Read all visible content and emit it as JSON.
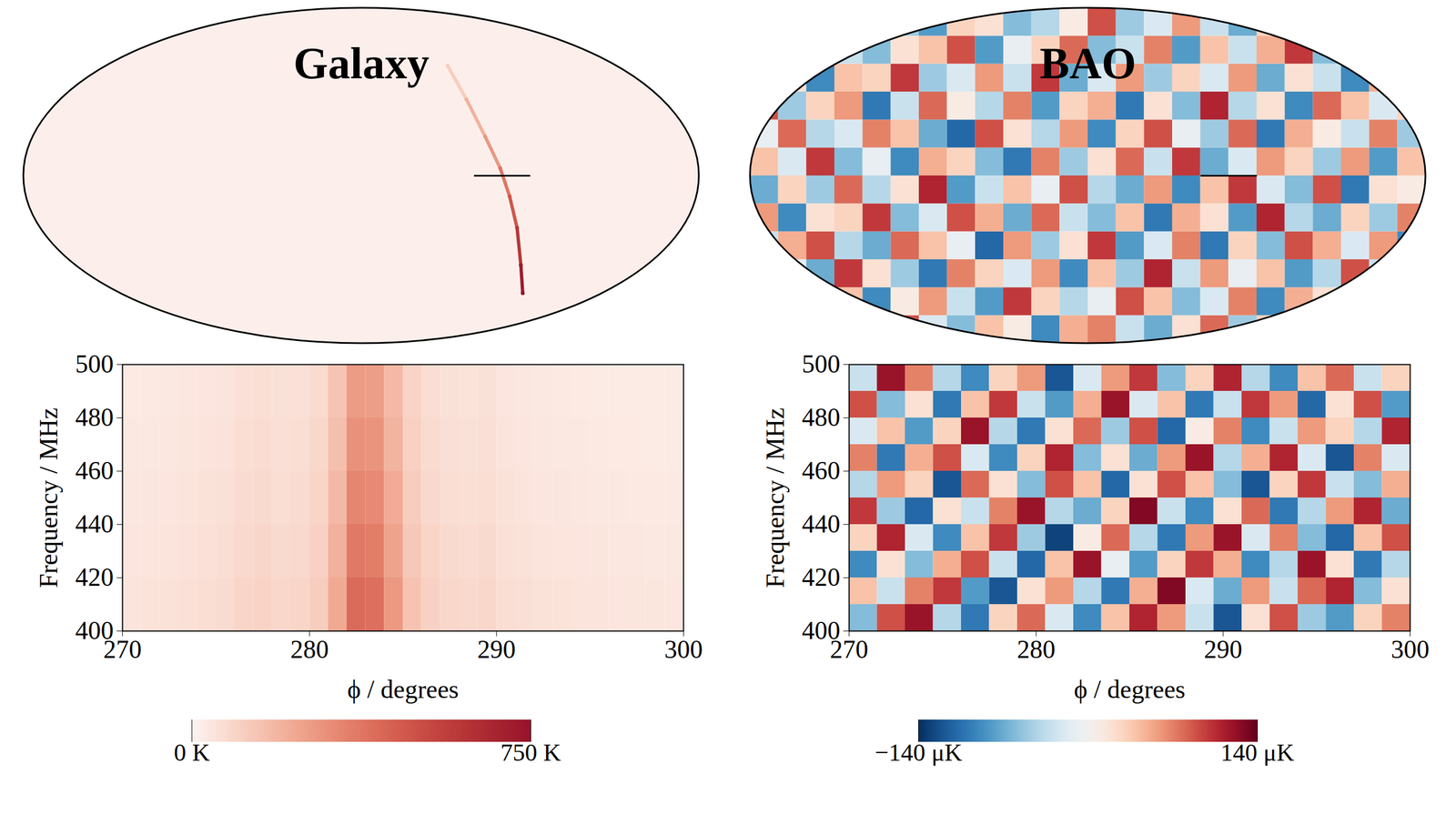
{
  "chart_data": [
    {
      "type": "sky_map",
      "title": "Galaxy",
      "xlim": [
        -180,
        180
      ],
      "ylim": [
        -90,
        90
      ],
      "tick_labels": false,
      "background": 15,
      "ridge": {
        "x": [
          46,
          56,
          66,
          74,
          79,
          83,
          85,
          86
        ],
        "y": [
          59,
          41,
          21,
          4,
          -11,
          -28,
          -48,
          -63
        ],
        "values": [
          120,
          200,
          280,
          380,
          480,
          600,
          720,
          750
        ]
      },
      "marker": {
        "x": [
          60,
          90
        ],
        "y": 0
      }
    },
    {
      "type": "sky_map",
      "title": "BAO",
      "xlim": [
        -180,
        180
      ],
      "ylim": [
        -90,
        90
      ],
      "tick_labels": false,
      "cells": {
        "xbins": [
          -180,
          -165,
          -150,
          -135,
          -120,
          -105,
          -90,
          -75,
          -60,
          -45,
          -30,
          -15,
          0,
          15,
          30,
          45,
          60,
          75,
          90,
          105,
          120,
          135,
          150,
          165,
          180
        ],
        "ybins": [
          -90,
          -75,
          -60,
          -45,
          -30,
          -15,
          0,
          15,
          30,
          45,
          60,
          75,
          90
        ],
        "values": [
          [
            20,
            -40,
            60,
            -80,
            30,
            90,
            -20,
            -60,
            40,
            10,
            -90,
            50,
            70,
            -30,
            -70,
            20,
            80,
            -50,
            30,
            -10,
            60,
            -40,
            10,
            -20
          ],
          [
            -50,
            70,
            -20,
            40,
            -90,
            10,
            60,
            -30,
            -80,
            100,
            30,
            -40,
            -10,
            90,
            40,
            -60,
            -20,
            70,
            -90,
            50,
            20,
            -70,
            80,
            30
          ],
          [
            80,
            -10,
            -70,
            100,
            20,
            -50,
            -100,
            70,
            30,
            -20,
            60,
            -90,
            40,
            -50,
            110,
            -30,
            60,
            -10,
            40,
            -80,
            -40,
            90,
            -30,
            -60
          ],
          [
            -30,
            50,
            90,
            -40,
            -70,
            80,
            40,
            -10,
            -110,
            60,
            -50,
            20,
            100,
            -80,
            -20,
            70,
            -100,
            30,
            -60,
            90,
            50,
            -20,
            60,
            -90
          ],
          [
            60,
            -90,
            20,
            30,
            100,
            -60,
            -20,
            90,
            50,
            -70,
            80,
            -30,
            -60,
            40,
            -100,
            50,
            20,
            -80,
            110,
            -40,
            -70,
            30,
            -50,
            70
          ],
          [
            -70,
            30,
            -50,
            80,
            -40,
            20,
            110,
            -80,
            -30,
            40,
            -10,
            90,
            -40,
            -70,
            60,
            -90,
            40,
            100,
            -20,
            -60,
            90,
            -100,
            20,
            10
          ],
          [
            40,
            -20,
            100,
            -60,
            -10,
            -90,
            50,
            30,
            -60,
            -100,
            70,
            -50,
            20,
            80,
            -30,
            100,
            -70,
            -20,
            60,
            30,
            -50,
            60,
            -80,
            40
          ],
          [
            -10,
            80,
            -40,
            -20,
            70,
            40,
            -70,
            -110,
            90,
            20,
            -40,
            60,
            -90,
            30,
            90,
            -10,
            -50,
            80,
            -100,
            50,
            10,
            -30,
            70,
            -50
          ],
          [
            90,
            -50,
            30,
            60,
            -100,
            -30,
            80,
            10,
            -40,
            70,
            -80,
            30,
            50,
            -100,
            20,
            -60,
            110,
            -40,
            20,
            -90,
            80,
            40,
            -20,
            30
          ],
          [
            -60,
            20,
            -90,
            40,
            30,
            100,
            -50,
            -20,
            60,
            -30,
            100,
            -70,
            -20,
            60,
            -50,
            30,
            -20,
            60,
            -70,
            20,
            -30,
            -90,
            50,
            -40
          ],
          [
            30,
            -70,
            50,
            -30,
            -60,
            20,
            40,
            90,
            -80,
            -10,
            30,
            80,
            -60,
            -30,
            70,
            -80,
            40,
            -30,
            50,
            100,
            -60,
            20,
            -40,
            80
          ],
          [
            -20,
            40,
            -30,
            70,
            10,
            -50,
            -80,
            30,
            20,
            -60,
            -40,
            10,
            90,
            -50,
            -20,
            60,
            -30,
            -70,
            30,
            -20,
            40,
            -50,
            60,
            -10
          ]
        ]
      },
      "marker": {
        "x": [
          60,
          90
        ],
        "y": 0
      }
    },
    {
      "type": "heatmap",
      "x_label": "ϕ / degrees",
      "y_label": "Frequency / MHz",
      "xlim": [
        270,
        300
      ],
      "ylim": [
        400,
        500
      ],
      "xticks": [
        270,
        280,
        290,
        300
      ],
      "yticks": [
        400,
        420,
        440,
        460,
        480,
        500
      ],
      "xbins": [
        270,
        271,
        272,
        273,
        274,
        275,
        276,
        277,
        278,
        279,
        280,
        281,
        282,
        283,
        284,
        285,
        286,
        287,
        288,
        289,
        290,
        291,
        292,
        293,
        294,
        295,
        296,
        297,
        298,
        299,
        300
      ],
      "ybins": [
        400,
        420,
        440,
        460,
        480,
        500
      ],
      "values": [
        [
          50,
          53,
          56,
          60,
          69,
          75,
          94,
          100,
          88,
          94,
          119,
          225,
          412,
          400,
          275,
          150,
          106,
          88,
          81,
          88,
          69,
          63,
          56,
          53,
          50,
          48,
          45,
          44,
          43,
          41
        ],
        [
          45,
          47,
          50,
          54,
          62,
          67,
          84,
          90,
          78,
          84,
          106,
          202,
          370,
          358,
          246,
          134,
          95,
          78,
          73,
          78,
          62,
          56,
          50,
          47,
          45,
          43,
          40,
          39,
          38,
          37
        ],
        [
          40,
          42,
          45,
          48,
          55,
          60,
          75,
          80,
          70,
          75,
          95,
          180,
          330,
          320,
          220,
          120,
          85,
          70,
          65,
          70,
          55,
          50,
          45,
          42,
          40,
          38,
          36,
          35,
          34,
          33
        ],
        [
          36,
          38,
          41,
          43,
          50,
          54,
          68,
          72,
          63,
          68,
          86,
          162,
          297,
          288,
          198,
          108,
          77,
          63,
          59,
          63,
          50,
          45,
          41,
          38,
          36,
          34,
          32,
          32,
          31,
          30
        ],
        [
          32,
          34,
          36,
          39,
          45,
          49,
          61,
          65,
          57,
          61,
          77,
          146,
          267,
          259,
          178,
          97,
          69,
          57,
          53,
          57,
          45,
          41,
          36,
          34,
          32,
          31,
          29,
          28,
          28,
          27
        ]
      ],
      "colorbar": {
        "range": [
          0,
          750
        ],
        "ticks": [
          {
            "value": 0,
            "label": "0 K"
          },
          {
            "value": 750,
            "label": "750 K"
          }
        ]
      }
    },
    {
      "type": "heatmap",
      "x_label": "ϕ / degrees",
      "y_label": "Frequency / MHz",
      "xlim": [
        270,
        300
      ],
      "ylim": [
        400,
        500
      ],
      "xticks": [
        270,
        280,
        290,
        300
      ],
      "yticks": [
        400,
        420,
        440,
        460,
        480,
        500
      ],
      "xbins": [
        270,
        271.5,
        273,
        274.5,
        276,
        277.5,
        279,
        280.5,
        282,
        283.5,
        285,
        286.5,
        288,
        289.5,
        291,
        292.5,
        294,
        295.5,
        297,
        298.5,
        300
      ],
      "ybins": [
        400,
        410,
        420,
        430,
        440,
        450,
        460,
        470,
        480,
        490,
        500
      ],
      "values": [
        [
          -60,
          90,
          120,
          -40,
          -100,
          30,
          80,
          -20,
          -90,
          40,
          110,
          60,
          -30,
          -120,
          20,
          90,
          -50,
          -80,
          30,
          70
        ],
        [
          40,
          -30,
          70,
          100,
          -80,
          -120,
          20,
          60,
          -40,
          -100,
          50,
          130,
          -20,
          -70,
          60,
          -30,
          80,
          110,
          -60,
          20
        ],
        [
          -90,
          20,
          -60,
          50,
          90,
          -30,
          -110,
          40,
          120,
          -10,
          -80,
          30,
          100,
          50,
          -90,
          -40,
          120,
          20,
          -100,
          -40
        ],
        [
          30,
          110,
          -20,
          -90,
          40,
          100,
          -50,
          -130,
          10,
          80,
          -40,
          -100,
          60,
          120,
          -20,
          70,
          -60,
          -110,
          40,
          90
        ],
        [
          100,
          -50,
          -110,
          20,
          -30,
          70,
          120,
          -40,
          -70,
          30,
          130,
          -30,
          -90,
          20,
          80,
          -100,
          -40,
          60,
          110,
          -70
        ],
        [
          -40,
          60,
          30,
          -120,
          80,
          20,
          -60,
          90,
          40,
          -110,
          20,
          90,
          40,
          -60,
          -120,
          30,
          100,
          -30,
          -60,
          50
        ],
        [
          70,
          -100,
          50,
          90,
          -20,
          -90,
          30,
          110,
          -60,
          20,
          -70,
          60,
          120,
          -40,
          50,
          110,
          -20,
          -120,
          70,
          -20
        ],
        [
          -20,
          40,
          -80,
          30,
          120,
          -40,
          -100,
          20,
          80,
          -50,
          90,
          -110,
          10,
          70,
          -90,
          -30,
          60,
          30,
          -40,
          110
        ],
        [
          90,
          -60,
          20,
          -100,
          40,
          100,
          -30,
          -80,
          50,
          120,
          -20,
          40,
          -100,
          -30,
          100,
          60,
          -110,
          20,
          90,
          -80
        ],
        [
          -30,
          120,
          70,
          -40,
          -90,
          30,
          60,
          -120,
          -20,
          60,
          100,
          -60,
          30,
          110,
          -40,
          -90,
          40,
          80,
          -30,
          30
        ]
      ],
      "colorbar": {
        "range": [
          -140,
          140
        ],
        "ticks": [
          {
            "value": -140,
            "label": "−140 μK"
          },
          {
            "value": 140,
            "label": "140 μK"
          }
        ]
      }
    }
  ]
}
